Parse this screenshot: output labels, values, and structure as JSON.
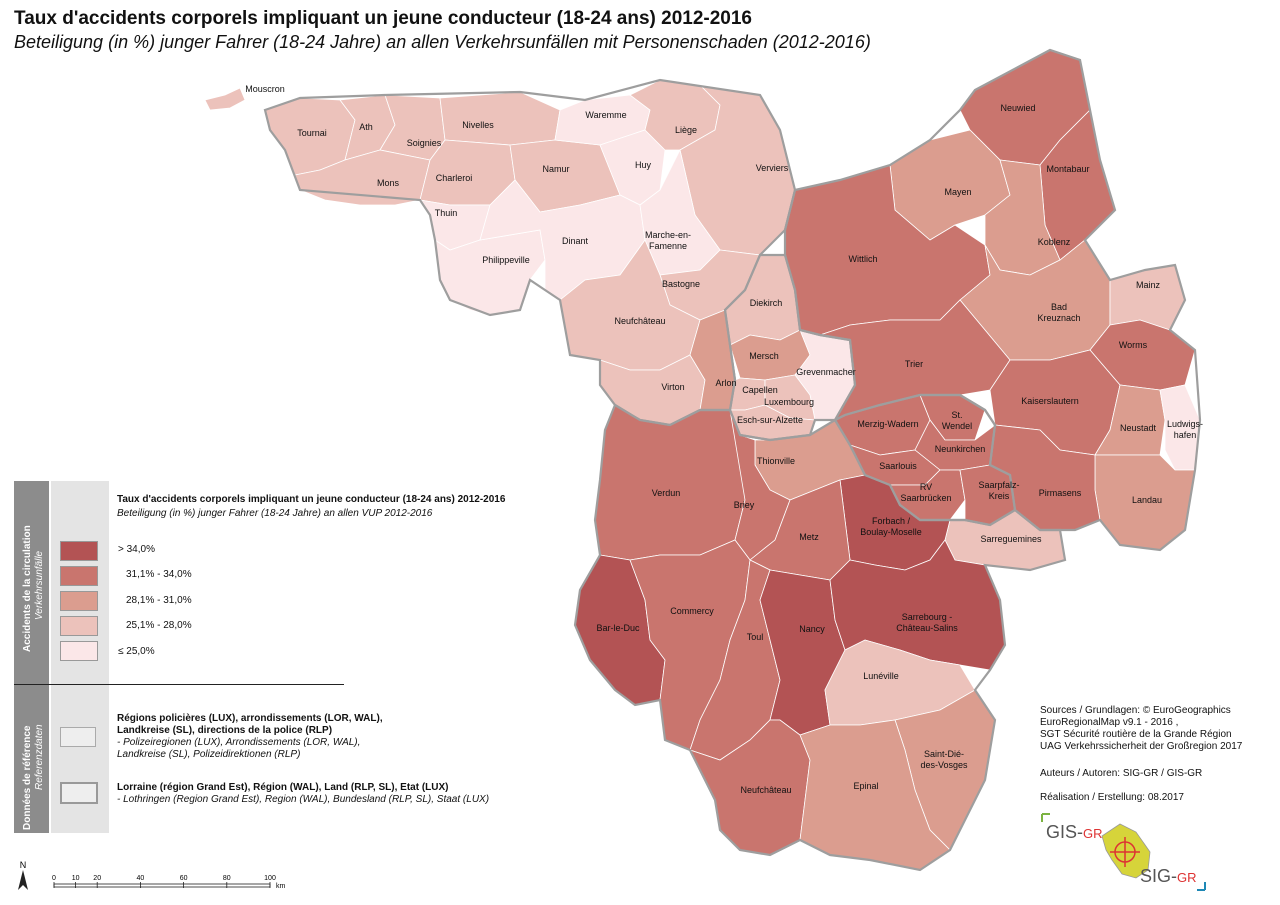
{
  "title": "Taux d'accidents corporels impliquant un jeune conducteur (18-24 ans) 2012-2016",
  "subtitle": "Beteiligung (in %) junger Fahrer (18-24 Jahre) an allen Verkehrsunfällen mit Personenschaden (2012-2016)",
  "colors": {
    "c1": "#b35354",
    "c2": "#c9756e",
    "c3": "#db9d8f",
    "c4": "#ecc2bb",
    "c5": "#fbe7e8",
    "border": "#9e9e9e"
  },
  "regions": [
    {
      "name": "Mouscron",
      "class": "c4"
    },
    {
      "name": "Tournai",
      "class": "c4"
    },
    {
      "name": "Ath",
      "class": "c4"
    },
    {
      "name": "Soignies",
      "class": "c4"
    },
    {
      "name": "Mons",
      "class": "c4"
    },
    {
      "name": "Nivelles",
      "class": "c4"
    },
    {
      "name": "Charleroi",
      "class": "c4"
    },
    {
      "name": "Namur",
      "class": "c4"
    },
    {
      "name": "Waremme",
      "class": "c5"
    },
    {
      "name": "Huy",
      "class": "c5"
    },
    {
      "name": "Liège",
      "class": "c4"
    },
    {
      "name": "Verviers",
      "class": "c4"
    },
    {
      "name": "Thuin",
      "class": "c5"
    },
    {
      "name": "Philippeville",
      "class": "c5"
    },
    {
      "name": "Dinant",
      "class": "c5"
    },
    {
      "name": "Marche-en-Famenne",
      "class": "c5"
    },
    {
      "name": "Bastogne",
      "class": "c4"
    },
    {
      "name": "Neufchâteau",
      "class": "c4"
    },
    {
      "name": "Virton",
      "class": "c4"
    },
    {
      "name": "Arlon",
      "class": "c3"
    },
    {
      "name": "Diekirch",
      "class": "c4"
    },
    {
      "name": "Mersch",
      "class": "c3"
    },
    {
      "name": "Grevenmacher",
      "class": "c5"
    },
    {
      "name": "Capellen",
      "class": "c4"
    },
    {
      "name": "Luxembourg",
      "class": "c4"
    },
    {
      "name": "Esch-sur-Alzette",
      "class": "c4"
    },
    {
      "name": "Neuwied",
      "class": "c2"
    },
    {
      "name": "Montabaur",
      "class": "c2"
    },
    {
      "name": "Mayen",
      "class": "c3"
    },
    {
      "name": "Koblenz",
      "class": "c3"
    },
    {
      "name": "Wittlich",
      "class": "c2"
    },
    {
      "name": "Bad Kreuznach",
      "class": "c3"
    },
    {
      "name": "Mainz",
      "class": "c4"
    },
    {
      "name": "Worms",
      "class": "c2"
    },
    {
      "name": "Trier",
      "class": "c2"
    },
    {
      "name": "Kaiserslautern",
      "class": "c2"
    },
    {
      "name": "Neustadt",
      "class": "c3"
    },
    {
      "name": "Ludwigshafen",
      "class": "c5"
    },
    {
      "name": "Landau",
      "class": "c3"
    },
    {
      "name": "Merzig-Wadern",
      "class": "c2"
    },
    {
      "name": "St. Wendel",
      "class": "c2"
    },
    {
      "name": "Neunkirchen",
      "class": "c2"
    },
    {
      "name": "Saarlouis",
      "class": "c2"
    },
    {
      "name": "RV Saarbrücken",
      "class": "c2"
    },
    {
      "name": "Saarpfalz-Kreis",
      "class": "c2"
    },
    {
      "name": "Pirmasens",
      "class": "c2"
    },
    {
      "name": "Sarreguemines",
      "class": "c4"
    },
    {
      "name": "Thionville",
      "class": "c3"
    },
    {
      "name": "Forbach / Boulay-Moselle",
      "class": "c1"
    },
    {
      "name": "Verdun",
      "class": "c2"
    },
    {
      "name": "Briey",
      "class": "c2"
    },
    {
      "name": "Metz",
      "class": "c2"
    },
    {
      "name": "Bar-le-Duc",
      "class": "c1"
    },
    {
      "name": "Commercy",
      "class": "c2"
    },
    {
      "name": "Toul",
      "class": "c2"
    },
    {
      "name": "Nancy",
      "class": "c1"
    },
    {
      "name": "Sarrebourg - Château-Salins",
      "class": "c1"
    },
    {
      "name": "Lunéville",
      "class": "c4"
    },
    {
      "name": "Saint-Dié-des-Vosges",
      "class": "c3"
    },
    {
      "name": "Neufchâteau",
      "class": "c2"
    },
    {
      "name": "Epinal",
      "class": "c3"
    }
  ],
  "legend": {
    "side1": "Accidents de la circulation",
    "side1_de": "Verkehrsunfälle",
    "side2": "Données de référence",
    "side2_de": "Referenzdaten",
    "title": "Taux d'accidents corporels impliquant un jeune conducteur (18-24 ans) 2012-2016",
    "subtitle": "Beteiligung (in %) junger Fahrer (18-24 Jahre) an allen VUP 2012-2016",
    "classes": [
      {
        "label": "> 34,0%",
        "color": "#b35354"
      },
      {
        "label": "31,1% - 34,0%",
        "color": "#c9756e"
      },
      {
        "label": "28,1% - 31,0%",
        "color": "#db9d8f"
      },
      {
        "label": "25,1% -   28,0%",
        "color": "#ecc2bb"
      },
      {
        "label": "≤ 25,0%",
        "color": "#fbe7e8"
      }
    ],
    "ref1_bold": "Régions policières (LUX), arrondissements (LOR, WAL),",
    "ref1_bold2": "Landkreise (SL), directions de la police (RLP)",
    "ref1_it": "- Polizeiregionen (LUX), Arrondissements (LOR, WAL),",
    "ref1_it2": "Landkreise (SL), Polizeidirektionen (RLP)",
    "ref2_bold": "Lorraine (région Grand Est), Région (WAL), Land (RLP, SL), Etat (LUX)",
    "ref2_it": "- Lothringen (Region Grand Est), Region (WAL), Bundesland (RLP, SL), Staat (LUX)"
  },
  "sources": {
    "l1": "Sources / Grundlagen: © EuroGeographics",
    "l2": "EuroRegionalMap v9.1 - 2016 ,",
    "l3": "SGT Sécurité routière de la Grande Région",
    "l4": "UAG Verkehrssicherheit der Großregion 2017",
    "authors": "Auteurs / Autoren: SIG-GR / GIS-GR",
    "realisation": "Réalisation / Erstellung: 08.2017"
  },
  "logo": {
    "gis": "GIS-",
    "gis_gr": "GR",
    "sig": "SIG-",
    "sig_gr": "GR"
  },
  "scale": {
    "north": "N",
    "ticks": [
      "0",
      "10",
      "20",
      "40",
      "60",
      "80",
      "100"
    ],
    "unit": "km"
  }
}
